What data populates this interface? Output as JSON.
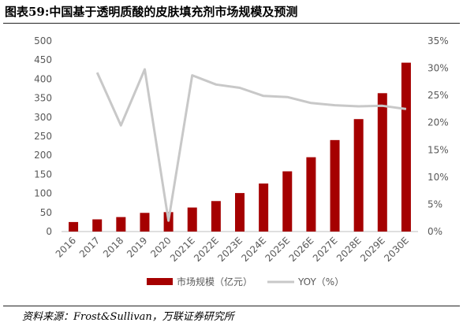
{
  "title": "图表59:中国基于透明质酸的皮肤填充剂市场规模及预测",
  "source": "资料来源：Frost&Sullivan，万联证券研究所",
  "colors": {
    "bar": "#a50000",
    "line": "#c8c8c8",
    "axis": "#bfbfbf",
    "tick": "#595959"
  },
  "chart_data": {
    "type": "bar",
    "categories": [
      "2016",
      "2017",
      "2018",
      "2019",
      "2020",
      "2021E",
      "2022E",
      "2023E",
      "2024E",
      "2025E",
      "2026E",
      "2027E",
      "2028E",
      "2029E",
      "2030E"
    ],
    "y_left": {
      "ticks": [
        "0",
        "50",
        "100",
        "150",
        "200",
        "250",
        "300",
        "350",
        "400",
        "450",
        "500"
      ],
      "ylim": [
        0,
        500
      ]
    },
    "y_right": {
      "ticks": [
        "0%",
        "5%",
        "10%",
        "15%",
        "20%",
        "25%",
        "30%",
        "35%"
      ],
      "ylim": [
        0,
        35
      ]
    },
    "series": [
      {
        "name": "市场规模（亿元）",
        "type": "bar",
        "axis": "left",
        "values": [
          25,
          32,
          38,
          49,
          51,
          63,
          80,
          101,
          126,
          158,
          195,
          240,
          295,
          363,
          443
        ]
      },
      {
        "name": "YOY（%）",
        "type": "line",
        "axis": "right",
        "values": [
          null,
          29.2,
          19.5,
          29.8,
          2.0,
          28.7,
          27.0,
          26.4,
          24.9,
          24.7,
          23.6,
          23.2,
          23.0,
          23.1,
          22.5
        ]
      }
    ],
    "legend": {
      "position": "bottom"
    },
    "grid": false
  }
}
